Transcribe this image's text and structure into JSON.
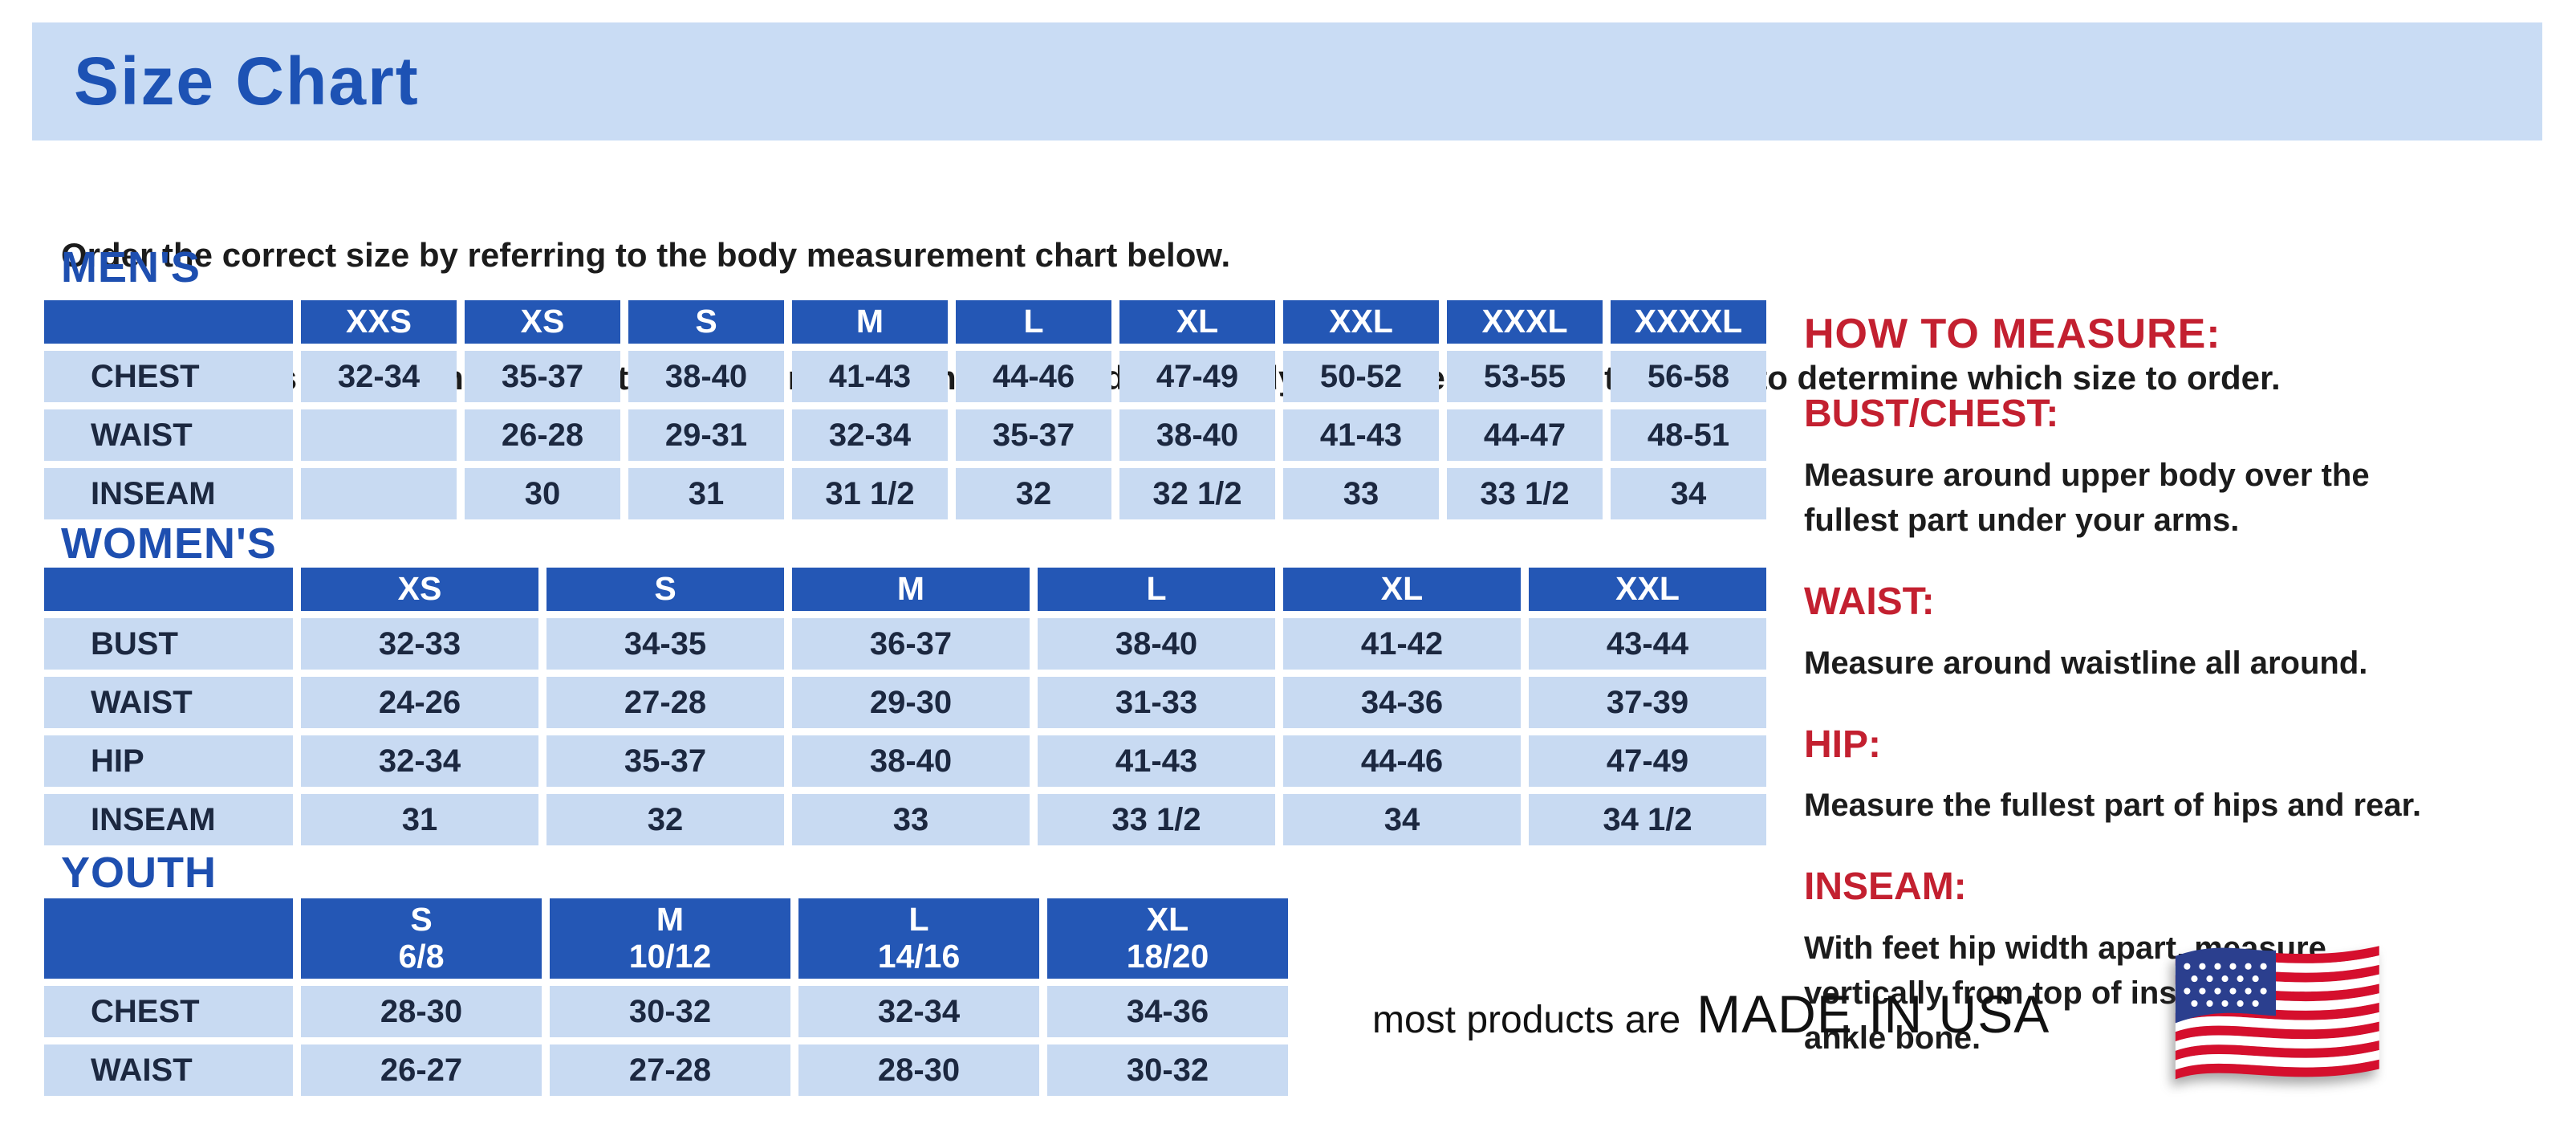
{
  "page_title": "Size Chart",
  "intro": {
    "lines": [
      "Order the correct size by referring to the body measurement chart below.",
      "Measurements shown on size chart are body measurements.  Find your body measurements on the chart to determine which size to order."
    ]
  },
  "tables": [
    {
      "id": "mens",
      "title": "MEN'S",
      "columns": [
        "XXS",
        "XS",
        "S",
        "M",
        "L",
        "XL",
        "XXL",
        "XXXL",
        "XXXXL"
      ],
      "rows": [
        {
          "label": "CHEST",
          "values": [
            "32-34",
            "35-37",
            "38-40",
            "41-43",
            "44-46",
            "47-49",
            "50-52",
            "53-55",
            "56-58"
          ]
        },
        {
          "label": "WAIST",
          "values": [
            "",
            "26-28",
            "29-31",
            "32-34",
            "35-37",
            "38-40",
            "41-43",
            "44-47",
            "48-51"
          ]
        },
        {
          "label": "INSEAM",
          "values": [
            "",
            "30",
            "31",
            "31 1/2",
            "32",
            "32 1/2",
            "33",
            "33 1/2",
            "34"
          ]
        }
      ]
    },
    {
      "id": "womens",
      "title": "WOMEN'S",
      "columns": [
        "XS",
        "S",
        "M",
        "L",
        "XL",
        "XXL"
      ],
      "rows": [
        {
          "label": "BUST",
          "values": [
            "32-33",
            "34-35",
            "36-37",
            "38-40",
            "41-42",
            "43-44"
          ]
        },
        {
          "label": "WAIST",
          "values": [
            "24-26",
            "27-28",
            "29-30",
            "31-33",
            "34-36",
            "37-39"
          ]
        },
        {
          "label": "HIP",
          "values": [
            "32-34",
            "35-37",
            "38-40",
            "41-43",
            "44-46",
            "47-49"
          ]
        },
        {
          "label": "INSEAM",
          "values": [
            "31",
            "32",
            "33",
            "33 1/2",
            "34",
            "34 1/2"
          ]
        }
      ]
    },
    {
      "id": "youth",
      "title": "YOUTH",
      "columns": [
        "S\n6/8",
        "M\n10/12",
        "L\n14/16",
        "XL\n18/20"
      ],
      "rows": [
        {
          "label": "CHEST",
          "values": [
            "28-30",
            "30-32",
            "32-34",
            "34-36"
          ]
        },
        {
          "label": "WAIST",
          "values": [
            "26-27",
            "27-28",
            "28-30",
            "30-32"
          ]
        }
      ]
    }
  ],
  "how_to_measure": {
    "title": "HOW TO MEASURE:",
    "items": [
      {
        "label": "BUST/CHEST:",
        "lines": [
          "Measure around upper body over the",
          "fullest part under your arms."
        ]
      },
      {
        "label": "WAIST:",
        "lines": [
          "Measure around waistline all around."
        ]
      },
      {
        "label": "HIP:",
        "lines": [
          "Measure the fullest part of hips and rear."
        ]
      },
      {
        "label": "INSEAM:",
        "lines": [
          "With feet hip width apart, measure",
          "vertically from top of inside leg to",
          "ankle bone."
        ]
      }
    ]
  },
  "footer": {
    "prefix": "most products are",
    "emphasis": "MADE IN USA",
    "flag_icon": "us-flag"
  },
  "colors": {
    "band_bg": "#c9dcf4",
    "title_blue": "#1d52b4",
    "section_blue": "#1e4fb0",
    "header_blue": "#2457b5",
    "cell_bg": "#c8daf2",
    "cell_text": "#1c2840",
    "red": "#c32030",
    "text": "#1c1c1c",
    "flag_red": "#d50f2d",
    "flag_blue": "#2b3f8e"
  }
}
